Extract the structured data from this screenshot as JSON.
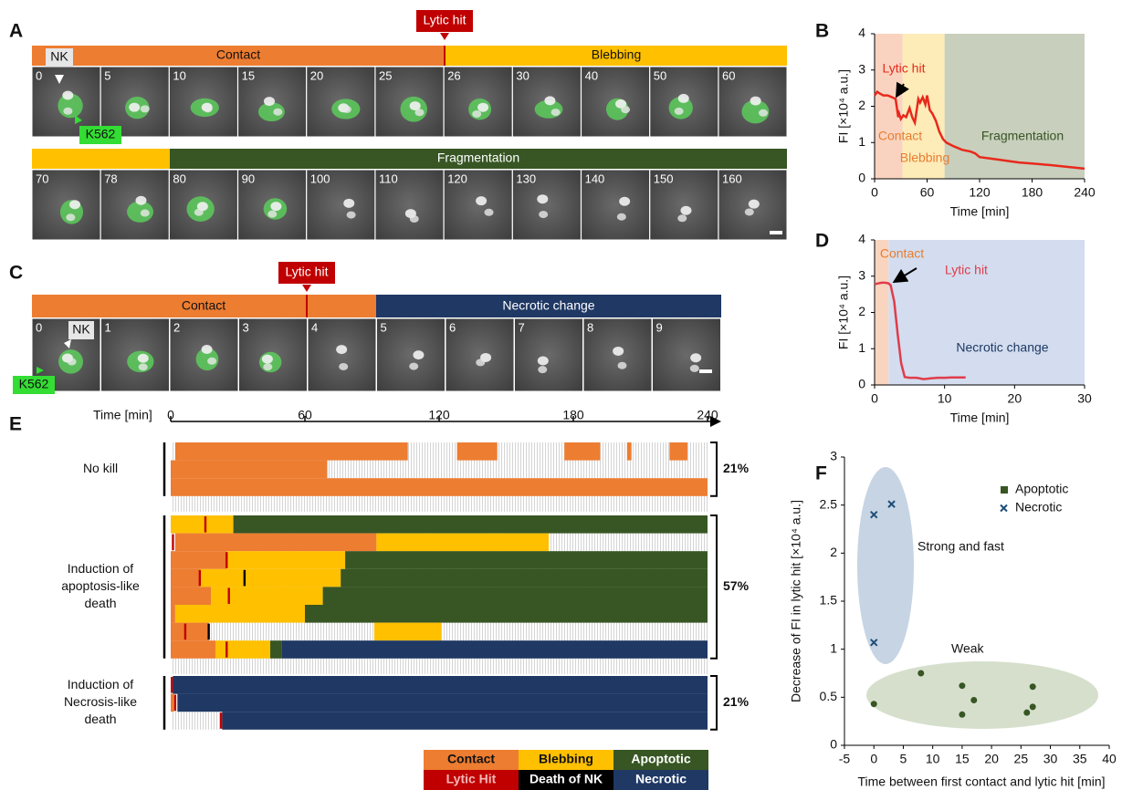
{
  "panel_labels": [
    "A",
    "B",
    "C",
    "D",
    "E",
    "F"
  ],
  "panel_a": {
    "lytic_hit": "Lytic hit",
    "phases_row1": [
      "Contact",
      "Blebbing"
    ],
    "phases_row2": [
      "Fragmentation"
    ],
    "frames_row1": [
      0,
      5,
      10,
      15,
      20,
      25,
      26,
      30,
      40,
      50,
      60
    ],
    "frames_row2": [
      70,
      78,
      80,
      90,
      100,
      110,
      120,
      130,
      140,
      150,
      160
    ],
    "nk_label": "NK",
    "target_label": "K562"
  },
  "panel_c": {
    "lytic_hit": "Lytic hit",
    "phases": [
      "Contact",
      "Necrotic change"
    ],
    "frames": [
      0,
      1,
      2,
      3,
      4,
      5,
      6,
      7,
      8,
      9
    ],
    "nk_label": "NK",
    "target_label": "K562"
  },
  "chart_data": [
    {
      "type": "line",
      "xlabel": "Time [min]",
      "ylabel": "FI [×10⁴ a.u.]",
      "xlim": [
        0,
        240
      ],
      "xticks": [
        0,
        60,
        120,
        180,
        240
      ],
      "ylim": [
        0,
        4
      ],
      "yticks": [
        0,
        1,
        2,
        3,
        4
      ],
      "x": [
        0,
        3,
        6,
        10,
        15,
        20,
        24,
        27,
        28,
        30,
        33,
        36,
        40,
        43,
        46,
        50,
        52,
        55,
        58,
        60,
        63,
        66,
        70,
        74,
        78,
        82,
        90,
        100,
        110,
        115,
        120,
        135,
        150,
        165,
        180,
        200,
        220,
        240
      ],
      "values": [
        2.3,
        2.4,
        2.35,
        2.3,
        2.3,
        2.25,
        2.2,
        1.7,
        1.8,
        1.65,
        1.75,
        1.7,
        1.95,
        1.7,
        1.55,
        2.2,
        2.1,
        2.25,
        2.05,
        2.3,
        1.9,
        1.8,
        1.6,
        1.3,
        1.1,
        1.0,
        0.9,
        0.8,
        0.75,
        0.7,
        0.6,
        0.55,
        0.5,
        0.45,
        0.42,
        0.38,
        0.33,
        0.28
      ],
      "color": "#e8291c",
      "annotation": "Lytic hit",
      "regions": [
        {
          "label": "Contact",
          "start": 0,
          "end": 32,
          "color": "#f9d3c0",
          "text_color": "#e87d31"
        },
        {
          "label": "Blebbing",
          "start": 32,
          "end": 80,
          "color": "#fdebb8",
          "text_color": "#e87d31"
        },
        {
          "label": "Fragmentation",
          "start": 80,
          "end": 240,
          "color": "#c8cfbd",
          "text_color": "#375623"
        }
      ]
    },
    {
      "type": "line",
      "xlabel": "Time [min]",
      "ylabel": "FI [×10⁴ a.u.]",
      "xlim": [
        0,
        30
      ],
      "xticks": [
        0,
        10,
        20,
        30
      ],
      "ylim": [
        0,
        4
      ],
      "yticks": [
        0,
        1,
        2,
        3,
        4
      ],
      "x": [
        0,
        0.5,
        1,
        1.5,
        2,
        2.3,
        2.8,
        3.3,
        3.8,
        4.3,
        5,
        6,
        7,
        8,
        9,
        10,
        11,
        12,
        13
      ],
      "values": [
        2.78,
        2.8,
        2.82,
        2.82,
        2.8,
        2.75,
        2.3,
        1.4,
        0.6,
        0.22,
        0.2,
        0.2,
        0.16,
        0.18,
        0.2,
        0.2,
        0.21,
        0.21,
        0.21
      ],
      "color": "#e03c4a",
      "annotation": "Lytic hit",
      "regions": [
        {
          "label": "Contact",
          "start": 0,
          "end": 2,
          "color": "#f9d5c0",
          "text_color": "#e87d31"
        },
        {
          "label": "Necrotic change",
          "start": 2,
          "end": 30,
          "color": "#d3ddef",
          "text_color": "#1f3864"
        }
      ]
    },
    {
      "type": "timeline",
      "xlabel": "Time [min]",
      "xlim": [
        0,
        240
      ],
      "xticks": [
        0,
        60,
        120,
        180,
        240
      ],
      "states": [
        {
          "name": "Contact",
          "color": "#ED7D31",
          "text_color": "#111111"
        },
        {
          "name": "Blebbing",
          "color": "#FFC000",
          "text_color": "#111111"
        },
        {
          "name": "Apoptotic",
          "color": "#375623",
          "text_color": "#ffffff"
        },
        {
          "name": "Lytic Hit",
          "color": "#C00000",
          "text_color": "#f3b7b7"
        },
        {
          "name": "Death of NK",
          "color": "#000000",
          "text_color": "#ffffff"
        },
        {
          "name": "Necrotic",
          "color": "#1F3864",
          "text_color": "#ffffff"
        }
      ],
      "groups": [
        {
          "label": [
            "No kill"
          ],
          "share": "21%",
          "rows": [
            {
              "segments": [
                {
                  "state": 0,
                  "start": 2,
                  "end": 106
                },
                {
                  "state": 0,
                  "start": 128,
                  "end": 146
                },
                {
                  "state": 0,
                  "start": 176,
                  "end": 192
                },
                {
                  "state": 0,
                  "start": 204,
                  "end": 206
                },
                {
                  "state": 0,
                  "start": 223,
                  "end": 231
                }
              ],
              "events": []
            },
            {
              "segments": [
                {
                  "state": 0,
                  "start": 0,
                  "end": 70
                }
              ],
              "events": []
            },
            {
              "segments": [
                {
                  "state": 0,
                  "start": 0,
                  "end": 240
                }
              ],
              "events": []
            }
          ]
        },
        {
          "label": [
            "Induction of",
            "apoptosis-like",
            "death"
          ],
          "share": "57%",
          "rows": [
            {
              "segments": [
                {
                  "state": 1,
                  "start": 0,
                  "end": 28
                },
                {
                  "state": 2,
                  "start": 28,
                  "end": 240
                }
              ],
              "events": [
                {
                  "state": 3,
                  "t": 15.5
                }
              ]
            },
            {
              "segments": [
                {
                  "state": 0,
                  "start": 2,
                  "end": 92
                },
                {
                  "state": 1,
                  "start": 92,
                  "end": 169
                }
              ],
              "events": [
                {
                  "state": 3,
                  "t": 1
                }
              ]
            },
            {
              "segments": [
                {
                  "state": 0,
                  "start": 0,
                  "end": 25
                },
                {
                  "state": 1,
                  "start": 25,
                  "end": 78
                },
                {
                  "state": 2,
                  "start": 78,
                  "end": 240
                }
              ],
              "events": [
                {
                  "state": 3,
                  "t": 25
                }
              ]
            },
            {
              "segments": [
                {
                  "state": 0,
                  "start": 0,
                  "end": 13
                },
                {
                  "state": 1,
                  "start": 13,
                  "end": 76
                },
                {
                  "state": 2,
                  "start": 76,
                  "end": 240
                }
              ],
              "events": [
                {
                  "state": 3,
                  "t": 13
                },
                {
                  "state": 4,
                  "t": 33
                }
              ]
            },
            {
              "segments": [
                {
                  "state": 0,
                  "start": 0,
                  "end": 18
                },
                {
                  "state": 1,
                  "start": 18,
                  "end": 68
                },
                {
                  "state": 2,
                  "start": 68,
                  "end": 240
                }
              ],
              "events": [
                {
                  "state": 3,
                  "t": 26
                }
              ]
            },
            {
              "segments": [
                {
                  "state": 0,
                  "start": 0,
                  "end": 2
                },
                {
                  "state": 1,
                  "start": 2,
                  "end": 60
                },
                {
                  "state": 2,
                  "start": 60,
                  "end": 240
                }
              ],
              "events": []
            },
            {
              "segments": [
                {
                  "state": 0,
                  "start": 0,
                  "end": 17
                },
                {
                  "state": 1,
                  "start": 91,
                  "end": 121
                }
              ],
              "events": [
                {
                  "state": 3,
                  "t": 6.5
                },
                {
                  "state": 4,
                  "t": 17
                }
              ]
            },
            {
              "segments": [
                {
                  "state": 0,
                  "start": 0,
                  "end": 20
                },
                {
                  "state": 1,
                  "start": 20,
                  "end": 44.5
                },
                {
                  "state": 2,
                  "start": 44.5,
                  "end": 49.5
                },
                {
                  "state": 5,
                  "start": 49.5,
                  "end": 240
                }
              ],
              "events": [
                {
                  "state": 3,
                  "t": 25
                }
              ]
            }
          ]
        },
        {
          "label": [
            "Induction of",
            "Necrosis-like",
            "death"
          ],
          "share": "21%",
          "rows": [
            {
              "segments": [
                {
                  "state": 5,
                  "start": 1,
                  "end": 240
                }
              ],
              "events": [
                {
                  "state": 3,
                  "t": 0.5
                }
              ]
            },
            {
              "segments": [
                {
                  "state": 0,
                  "start": 0,
                  "end": 1.5
                },
                {
                  "state": 5,
                  "start": 3,
                  "end": 240
                }
              ],
              "events": [
                {
                  "state": 3,
                  "t": 2
                }
              ]
            },
            {
              "segments": [
                {
                  "state": 5,
                  "start": 23,
                  "end": 240
                }
              ],
              "events": [
                {
                  "state": 3,
                  "t": 22.5
                }
              ]
            }
          ]
        }
      ]
    },
    {
      "type": "scatter",
      "xlabel": "Time between first contact and lytic hit [min]",
      "ylabel": "Decrease of FI in lytic hit [×10⁴ a.u.]",
      "xlim": [
        -5,
        40
      ],
      "xticks": [
        -5,
        0,
        5,
        10,
        15,
        20,
        25,
        30,
        35,
        40
      ],
      "ylim": [
        0,
        3
      ],
      "yticks": [
        0,
        0.5,
        1,
        1.5,
        2,
        2.5,
        3
      ],
      "annotations": [
        "Strong and fast",
        "Weak"
      ],
      "series": [
        {
          "name": "Apoptotic",
          "color": "#375623",
          "marker": "circle",
          "x": [
            0,
            8,
            15,
            15,
            17,
            26,
            27,
            27
          ],
          "values": [
            0.43,
            0.75,
            0.62,
            0.32,
            0.47,
            0.34,
            0.61,
            0.4
          ]
        },
        {
          "name": "Necrotic",
          "color": "#1f4e79",
          "marker": "cross",
          "x": [
            0,
            3,
            0
          ],
          "values": [
            2.4,
            2.51,
            1.07
          ]
        }
      ]
    }
  ]
}
